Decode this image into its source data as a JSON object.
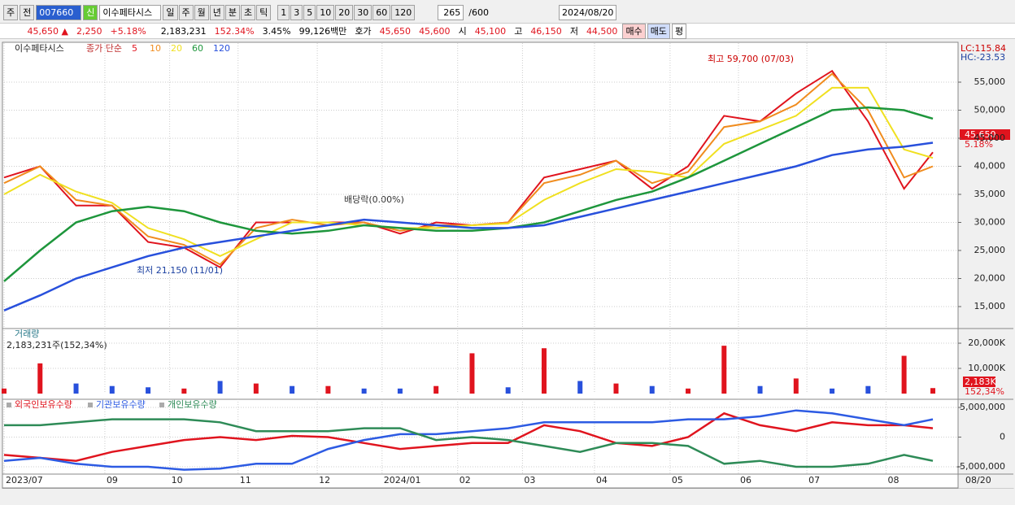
{
  "toolbar": {
    "period": "주",
    "prev": "전",
    "code": "007660",
    "credit": "신",
    "name": "이수페타시스",
    "intervals": [
      "일",
      "주",
      "월",
      "년",
      "분",
      "초",
      "틱"
    ],
    "minutes": [
      "1",
      "3",
      "5",
      "10",
      "20",
      "30",
      "60",
      "120"
    ],
    "count": "265",
    "max": "/600",
    "date": "2024/08/20"
  },
  "quote": {
    "price": "45,650 ▲",
    "change": "2,250",
    "rate": "+5.18%",
    "volume": "2,183,231",
    "volume_rate": "152.34%",
    "turnover": "3.45%",
    "amount": "99,126백만",
    "ask_label": "호가",
    "ask": "45,650",
    "bid": "45,600",
    "open_label": "시",
    "open": "45,100",
    "high_label": "고",
    "high": "46,150",
    "low_label": "저",
    "low": "44,500",
    "buy": "매수",
    "sell": "매도",
    "eval": "평"
  },
  "x_end_label": "08/20",
  "chart_data": [
    {
      "type": "line",
      "title": "이수페타시스",
      "subtitle": "종가 단순",
      "annotations": [
        "최고 59,700 (07/03)",
        "최저 21,150 (11/01)",
        "배당락(0.00%)"
      ],
      "scale_labels": [
        "LC:115.84",
        "HC:-23.53"
      ],
      "last_price": "45,650",
      "last_rate": "5.18%",
      "x": [
        0,
        10,
        20,
        30,
        40,
        50,
        60,
        70,
        80,
        90,
        100,
        110,
        120,
        130,
        140,
        150,
        160,
        170,
        180,
        190,
        200,
        210,
        220,
        230,
        240,
        250,
        258
      ],
      "series": [
        {
          "name": "5",
          "color": "#e0141e",
          "values": [
            38000,
            40000,
            33000,
            33000,
            26500,
            25500,
            22000,
            30000,
            30000,
            30000,
            30000,
            28000,
            30000,
            29500,
            30000,
            38000,
            39500,
            41000,
            36000,
            40000,
            49000,
            48000,
            53000,
            57000,
            48000,
            36000,
            42500
          ]
        },
        {
          "name": "10",
          "color": "#f08c1e",
          "values": [
            37000,
            40000,
            34000,
            33000,
            27500,
            26000,
            22500,
            29000,
            30500,
            29500,
            30000,
            28500,
            29500,
            29500,
            30000,
            37000,
            38500,
            41000,
            37000,
            39000,
            47000,
            48000,
            51000,
            56500,
            50000,
            38000,
            40000
          ]
        },
        {
          "name": "20",
          "color": "#f0e020",
          "values": [
            35000,
            38500,
            35500,
            33500,
            29000,
            27000,
            24000,
            27000,
            30000,
            30000,
            29500,
            29000,
            29000,
            29500,
            29800,
            34000,
            37000,
            39500,
            39000,
            38000,
            44000,
            46500,
            49000,
            54000,
            54000,
            43000,
            41500
          ]
        },
        {
          "name": "60",
          "color": "#1e963c",
          "values": [
            19500,
            25000,
            30000,
            32000,
            32800,
            32000,
            30000,
            28500,
            28000,
            28500,
            29500,
            29000,
            28500,
            28500,
            29000,
            30000,
            32000,
            34000,
            35500,
            38000,
            41000,
            44000,
            47000,
            50000,
            50500,
            50000,
            48500
          ]
        },
        {
          "name": "120",
          "color": "#2850dc",
          "values": [
            14300,
            17000,
            20000,
            22000,
            24000,
            25500,
            26500,
            27500,
            28500,
            29500,
            30500,
            30000,
            29500,
            29000,
            29000,
            29500,
            31000,
            32500,
            34000,
            35500,
            37000,
            38500,
            40000,
            42000,
            43000,
            43500,
            44200
          ]
        }
      ],
      "ylim": [
        11230,
        61670
      ],
      "yticks": [
        {
          "value": 15000,
          "label": "15,000"
        },
        {
          "value": 20000,
          "label": "20,000"
        },
        {
          "value": 25000,
          "label": "25,000"
        },
        {
          "value": 30000,
          "label": "30,000"
        },
        {
          "value": 35000,
          "label": "35,000"
        },
        {
          "value": 40000,
          "label": "40,000"
        },
        {
          "value": 45000,
          "label": "45,000"
        },
        {
          "value": 50000,
          "label": "50,000"
        },
        {
          "value": 55000,
          "label": "55,000"
        }
      ],
      "grid": true
    },
    {
      "type": "bar",
      "title": "거래량",
      "subtitle": "2,183,231주(152,34%)",
      "last_value": "2,183K",
      "last_rate": "152,34%",
      "x": [
        0,
        10,
        20,
        30,
        40,
        50,
        60,
        70,
        80,
        90,
        100,
        110,
        120,
        130,
        140,
        150,
        160,
        170,
        180,
        190,
        200,
        210,
        220,
        230,
        240,
        250,
        258
      ],
      "values": [
        2000,
        12000,
        4000,
        3000,
        2500,
        2000,
        5000,
        4000,
        3000,
        3000,
        2000,
        2000,
        3000,
        16000,
        2500,
        18000,
        5000,
        4000,
        3000,
        2000,
        19000,
        3000,
        6000,
        2000,
        3000,
        15000,
        2183
      ],
      "colors": [
        "#e0141e",
        "#e0141e",
        "#2850dc",
        "#2850dc",
        "#2850dc",
        "#e0141e",
        "#2850dc",
        "#e0141e",
        "#2850dc",
        "#e0141e",
        "#2850dc",
        "#2850dc",
        "#e0141e",
        "#e0141e",
        "#2850dc",
        "#e0141e",
        "#2850dc",
        "#e0141e",
        "#2850dc",
        "#e0141e",
        "#e0141e",
        "#2850dc",
        "#e0141e",
        "#2850dc",
        "#2850dc",
        "#e0141e",
        "#e0141e"
      ],
      "ylim": [
        0,
        25500
      ],
      "yticks": [
        {
          "value": 10000,
          "label": "10,000K"
        },
        {
          "value": 20000,
          "label": "20,000K"
        }
      ],
      "grid": true
    },
    {
      "type": "line",
      "x": [
        0,
        10,
        20,
        30,
        40,
        50,
        60,
        70,
        80,
        90,
        100,
        110,
        120,
        130,
        140,
        150,
        160,
        170,
        180,
        190,
        200,
        210,
        220,
        230,
        240,
        250,
        258
      ],
      "series": [
        {
          "name": "외국인보유수량",
          "color": "#e0141e",
          "values": [
            -3000000,
            -3500000,
            -4000000,
            -2500000,
            -1500000,
            -500000,
            0,
            -500000,
            200000,
            0,
            -1000000,
            -2000000,
            -1500000,
            -1000000,
            -1000000,
            2000000,
            1000000,
            -1000000,
            -1500000,
            0,
            4000000,
            2000000,
            1000000,
            2500000,
            2000000,
            2000000,
            1500000
          ]
        },
        {
          "name": "기관보유수량",
          "color": "#2d5be3",
          "values": [
            -4000000,
            -3500000,
            -4500000,
            -5000000,
            -5000000,
            -5500000,
            -5300000,
            -4500000,
            -4500000,
            -2000000,
            -500000,
            500000,
            500000,
            1000000,
            1500000,
            2500000,
            2500000,
            2500000,
            2500000,
            3000000,
            3000000,
            3500000,
            4500000,
            4000000,
            3000000,
            2000000,
            3000000
          ]
        },
        {
          "name": "개인보유수량",
          "color": "#2e8b57",
          "values": [
            2000000,
            2000000,
            2500000,
            3000000,
            3000000,
            3000000,
            2500000,
            1000000,
            1000000,
            1000000,
            1500000,
            1500000,
            -500000,
            0,
            -500000,
            -1500000,
            -2500000,
            -1000000,
            -1000000,
            -1500000,
            -4500000,
            -4000000,
            -5000000,
            -5000000,
            -4500000,
            -3000000,
            -4000000
          ]
        }
      ],
      "ylim": [
        -6100000,
        6100000
      ],
      "yticks": [
        {
          "value": -5000000,
          "label": "-5,000,000"
        },
        0,
        {
          "value": 5000000,
          "label": "5,000,000"
        }
      ],
      "xlim": [
        0,
        265
      ],
      "xticks": [
        {
          "value": 0,
          "label": "2023/07"
        },
        {
          "value": 28,
          "label": "09"
        },
        {
          "value": 46,
          "label": "10"
        },
        {
          "value": 65,
          "label": "11"
        },
        {
          "value": 87,
          "label": "12"
        },
        {
          "value": 105,
          "label": "2024/01"
        },
        {
          "value": 126,
          "label": "02"
        },
        {
          "value": 144,
          "label": "03"
        },
        {
          "value": 164,
          "label": "04"
        },
        {
          "value": 185,
          "label": "05"
        },
        {
          "value": 204,
          "label": "06"
        },
        {
          "value": 223,
          "label": "07"
        },
        {
          "value": 245,
          "label": "08"
        }
      ],
      "grid": true
    }
  ]
}
